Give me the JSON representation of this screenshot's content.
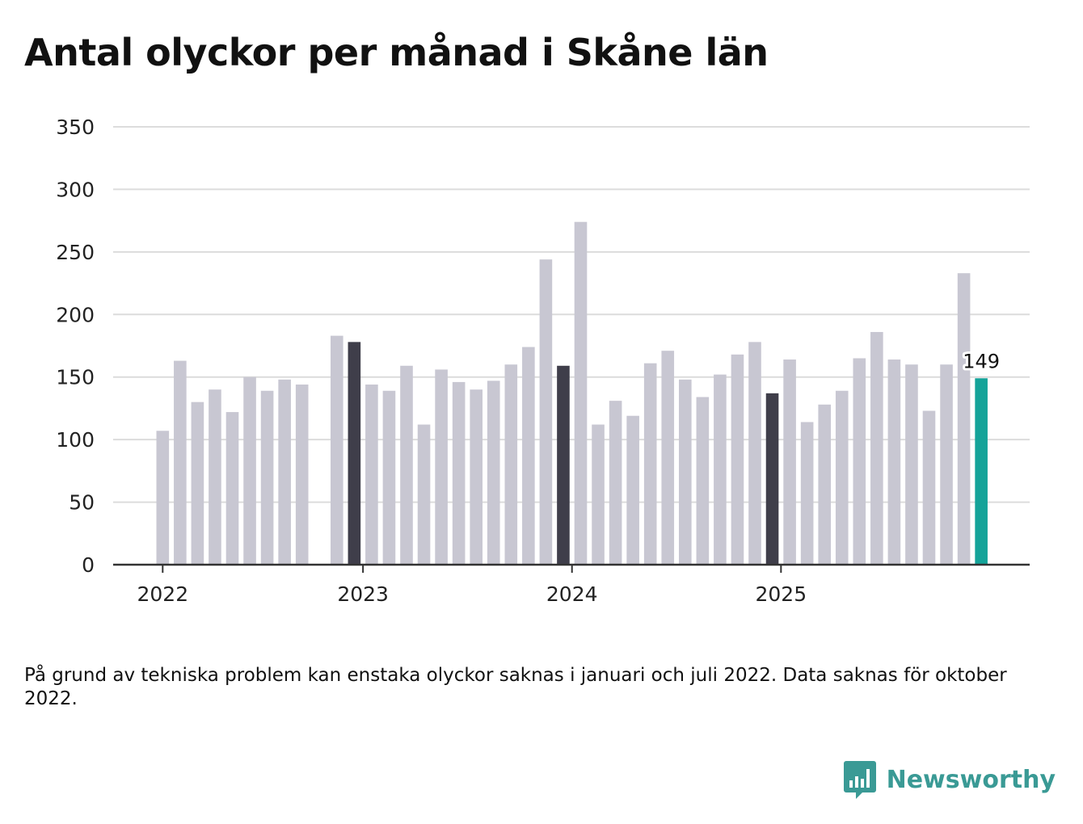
{
  "title": "Antal olyckor per månad i Skåne län",
  "footnote": "På grund av tekniska problem kan enstaka olyckor saknas i januari och juli 2022. Data saknas för oktober 2022.",
  "brand": "Newsworthy",
  "colors": {
    "default_bar": "#c8c7d2",
    "december_bar": "#3f3e4a",
    "latest_bar": "#14a399",
    "grid": "#dcdcdc",
    "axis": "#333333",
    "brand": "#3a9a95"
  },
  "chart_data": {
    "type": "bar",
    "title": "Antal olyckor per månad i Skåne län",
    "xlabel": "",
    "ylabel": "",
    "ylim": [
      0,
      350
    ],
    "yticks": [
      "0",
      "50",
      "100",
      "150",
      "200",
      "250",
      "300",
      "350"
    ],
    "xticks": [
      "2022",
      "2023",
      "2024",
      "2025"
    ],
    "grid": true,
    "series": [
      {
        "name": "Antal olyckor",
        "points": [
          {
            "month": "2022-01",
            "value": 107,
            "style": "default"
          },
          {
            "month": "2022-02",
            "value": 163,
            "style": "default"
          },
          {
            "month": "2022-03",
            "value": 130,
            "style": "default"
          },
          {
            "month": "2022-04",
            "value": 140,
            "style": "default"
          },
          {
            "month": "2022-05",
            "value": 122,
            "style": "default"
          },
          {
            "month": "2022-06",
            "value": 150,
            "style": "default"
          },
          {
            "month": "2022-07",
            "value": 139,
            "style": "default"
          },
          {
            "month": "2022-08",
            "value": 148,
            "style": "default"
          },
          {
            "month": "2022-09",
            "value": 144,
            "style": "default"
          },
          {
            "month": "2022-10",
            "value": null,
            "style": "missing"
          },
          {
            "month": "2022-11",
            "value": 183,
            "style": "default"
          },
          {
            "month": "2022-12",
            "value": 178,
            "style": "december"
          },
          {
            "month": "2023-01",
            "value": 144,
            "style": "default"
          },
          {
            "month": "2023-02",
            "value": 139,
            "style": "default"
          },
          {
            "month": "2023-03",
            "value": 159,
            "style": "default"
          },
          {
            "month": "2023-04",
            "value": 112,
            "style": "default"
          },
          {
            "month": "2023-05",
            "value": 156,
            "style": "default"
          },
          {
            "month": "2023-06",
            "value": 146,
            "style": "default"
          },
          {
            "month": "2023-07",
            "value": 140,
            "style": "default"
          },
          {
            "month": "2023-08",
            "value": 147,
            "style": "default"
          },
          {
            "month": "2023-09",
            "value": 160,
            "style": "default"
          },
          {
            "month": "2023-10",
            "value": 174,
            "style": "default"
          },
          {
            "month": "2023-11",
            "value": 244,
            "style": "default"
          },
          {
            "month": "2023-12",
            "value": 159,
            "style": "december"
          },
          {
            "month": "2024-01",
            "value": 274,
            "style": "default"
          },
          {
            "month": "2024-02",
            "value": 112,
            "style": "default"
          },
          {
            "month": "2024-03",
            "value": 131,
            "style": "default"
          },
          {
            "month": "2024-04",
            "value": 119,
            "style": "default"
          },
          {
            "month": "2024-05",
            "value": 161,
            "style": "default"
          },
          {
            "month": "2024-06",
            "value": 171,
            "style": "default"
          },
          {
            "month": "2024-07",
            "value": 148,
            "style": "default"
          },
          {
            "month": "2024-08",
            "value": 134,
            "style": "default"
          },
          {
            "month": "2024-09",
            "value": 152,
            "style": "default"
          },
          {
            "month": "2024-10",
            "value": 168,
            "style": "default"
          },
          {
            "month": "2024-11",
            "value": 178,
            "style": "default"
          },
          {
            "month": "2024-12",
            "value": 137,
            "style": "december"
          },
          {
            "month": "2025-01",
            "value": 164,
            "style": "default"
          },
          {
            "month": "2025-02",
            "value": 114,
            "style": "default"
          },
          {
            "month": "2025-03",
            "value": 128,
            "style": "default"
          },
          {
            "month": "2025-04",
            "value": 139,
            "style": "default"
          },
          {
            "month": "2025-05",
            "value": 165,
            "style": "default"
          },
          {
            "month": "2025-06",
            "value": 186,
            "style": "default"
          },
          {
            "month": "2025-07",
            "value": 164,
            "style": "default"
          },
          {
            "month": "2025-08",
            "value": 160,
            "style": "default"
          },
          {
            "month": "2025-09",
            "value": 123,
            "style": "default"
          },
          {
            "month": "2025-10",
            "value": 160,
            "style": "default"
          },
          {
            "month": "2025-11",
            "value": 233,
            "style": "default"
          },
          {
            "month": "2025-12",
            "value": 149,
            "style": "latest"
          }
        ]
      }
    ],
    "annotations": [
      {
        "month": "2025-12",
        "text": "149"
      }
    ]
  }
}
